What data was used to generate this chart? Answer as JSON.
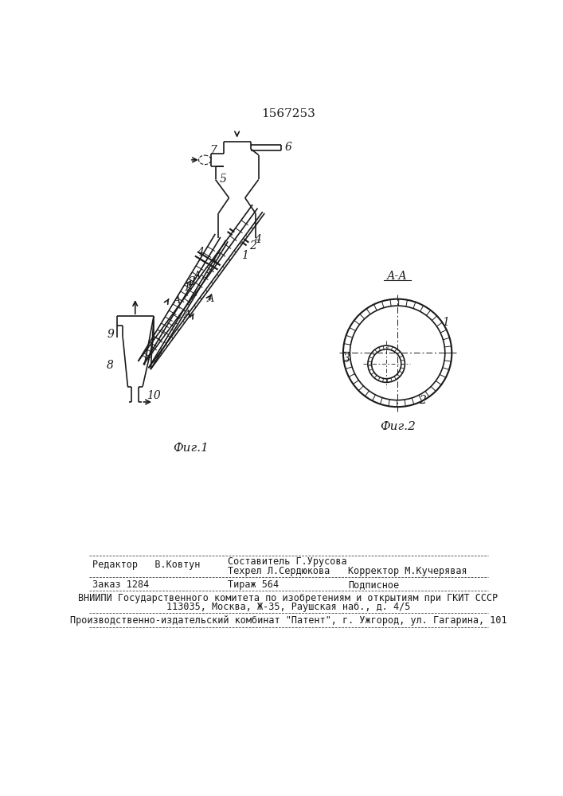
{
  "title": "1567253",
  "title_fontsize": 11,
  "fig1_label": "Фиг.1",
  "fig2_label": "Фиг.2",
  "section_label": "А-А",
  "bg_color": "#ffffff",
  "line_color": "#1a1a1a",
  "label_fontsize": 10,
  "footer_row1_left": "Редактор   В.Ковтун",
  "footer_row1_mid": "Составитель Г.Урусова",
  "footer_row2_mid": "Техрел Л.Сердюкова",
  "footer_row2_right": "Корректор М.Кучерявая",
  "footer_row3_left": "Заказ 1284",
  "footer_row3_mid": "Тираж 564",
  "footer_row3_right": "Подписное",
  "footer_vniipi": "ВНИИПИ Государственного комитета по изобретениям и открытиям при ГКИТ СССР",
  "footer_address": "113035, Москва, Ж-35, Раушская наб., д. 4/5",
  "footer_patent": "Производственно-издательский комбинат \"Патент\", г. Ужгород, ул. Гагарина, 101"
}
